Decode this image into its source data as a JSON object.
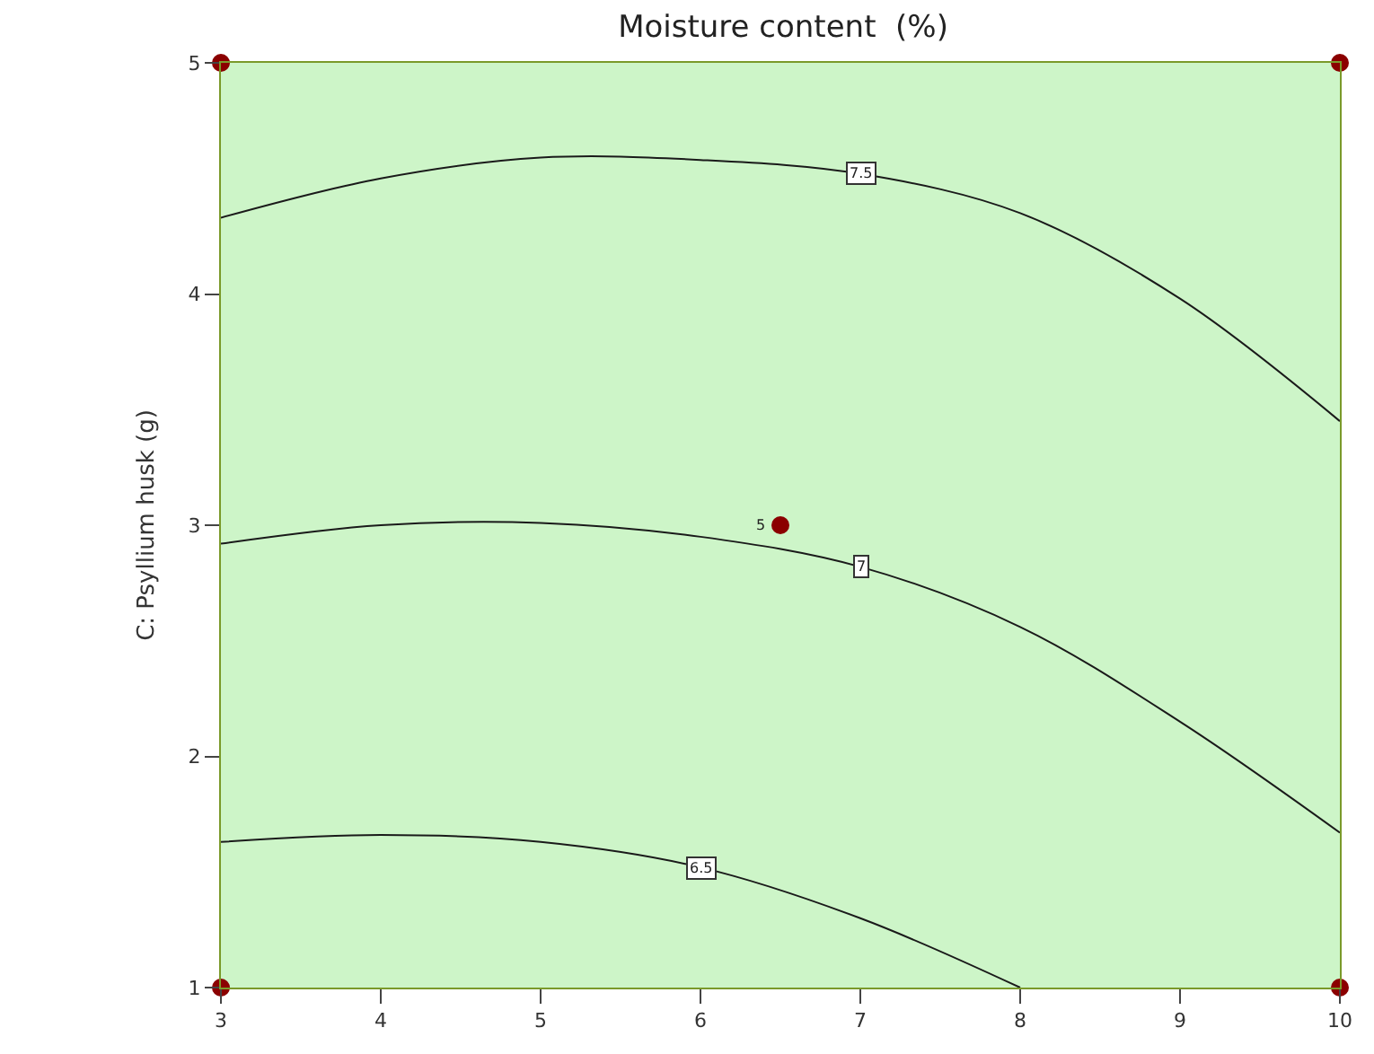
{
  "chart_data": {
    "type": "line",
    "title": "Moisture content  (%)",
    "ylabel": "C: Psyllium husk (g)",
    "xlim": [
      3,
      10
    ],
    "ylim": [
      1,
      5
    ],
    "xticks": [
      3,
      4,
      5,
      6,
      7,
      8,
      9,
      10
    ],
    "yticks": [
      1,
      2,
      3,
      4,
      5
    ],
    "grid": false,
    "legend": false,
    "marker": "none",
    "series": [
      {
        "name": "7.5",
        "color": "#1a1a1a",
        "x": [
          3,
          4,
          5,
          6,
          7,
          8,
          9,
          10
        ],
        "values": [
          4.33,
          4.5,
          4.59,
          4.58,
          4.52,
          4.35,
          3.98,
          3.45
        ]
      },
      {
        "name": "7",
        "color": "#1a1a1a",
        "x": [
          3,
          4,
          5,
          6,
          7,
          8,
          9,
          10
        ],
        "values": [
          2.92,
          3.0,
          3.01,
          2.95,
          2.82,
          2.56,
          2.15,
          1.67
        ]
      },
      {
        "name": "6.5",
        "color": "#1a1a1a",
        "x": [
          3,
          4,
          5,
          6,
          7,
          8
        ],
        "values": [
          1.63,
          1.66,
          1.63,
          1.52,
          1.3,
          1.0
        ]
      },
      {
        "type": "scatter",
        "marker": "circle",
        "color": "#8b0000",
        "x": [
          3,
          10,
          3,
          10,
          6.5
        ],
        "values": [
          5,
          5,
          1,
          1,
          3
        ]
      }
    ],
    "annotations": [
      {
        "text": "5",
        "x": 6.5,
        "y": 3
      }
    ]
  }
}
